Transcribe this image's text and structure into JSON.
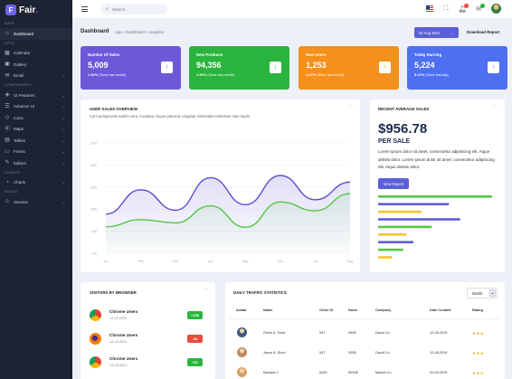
{
  "brand": {
    "name": "Fair",
    "badge": "F",
    "dot": "."
  },
  "sidebar": {
    "sections": [
      {
        "label": "MAIN",
        "items": [
          {
            "label": "Dashboard",
            "icon": "home-icon",
            "active": true
          }
        ]
      },
      {
        "label": "APPS",
        "items": [
          {
            "label": "Calendar",
            "icon": "calendar-icon"
          },
          {
            "label": "Gallery",
            "icon": "image-icon"
          },
          {
            "label": "Email",
            "icon": "mail-icon",
            "chevron": true
          }
        ]
      },
      {
        "label": "COMPONENTS",
        "items": [
          {
            "label": "UI Features",
            "icon": "layers-icon",
            "chevron": true
          },
          {
            "label": "Advance UI",
            "icon": "sliders-icon",
            "chevron": true
          },
          {
            "label": "Icons",
            "icon": "diamond-icon",
            "chevron": true
          },
          {
            "label": "Maps",
            "icon": "map-pin-icon",
            "chevron": true
          },
          {
            "label": "Tables",
            "icon": "table-icon",
            "chevron": true
          },
          {
            "label": "Forms",
            "icon": "form-icon",
            "chevron": true
          },
          {
            "label": "Editors",
            "icon": "edit-icon",
            "chevron": true
          }
        ]
      },
      {
        "label": "CHARTS",
        "items": [
          {
            "label": "Charts",
            "icon": "chart-icon",
            "chevron": true
          }
        ]
      },
      {
        "label": "PAGES",
        "items": [
          {
            "label": "Session",
            "icon": "users-icon",
            "chevron": true
          }
        ]
      }
    ]
  },
  "topbar": {
    "search_placeholder": "Search..."
  },
  "header": {
    "title": "Dashboard",
    "breadcrumb": "App  >  Dashboard  >  Analytics",
    "date": "02 Aug 2021",
    "download": "Download Report"
  },
  "stats": [
    {
      "title": "Number Of Sales",
      "value": "5,009",
      "pct": "1.92%",
      "note": "(Since last month)",
      "color": "#6e58d9",
      "icon": "↑"
    },
    {
      "title": "New Products",
      "value": "94,356",
      "pct": "1.92%",
      "note": "(Since last month)",
      "color": "#2bb43d",
      "icon": "↓"
    },
    {
      "title": "New Users",
      "value": "1,253",
      "pct": "1.27%",
      "note": "(Since last month)",
      "color": "#f4901c",
      "icon": "↑"
    },
    {
      "title": "Today Earning",
      "value": "5,224",
      "pct": "5.12%",
      "note": "(Since last day)",
      "color": "#4d6ff0",
      "icon": "↑"
    }
  ],
  "user_sales": {
    "title": "USER SALES OVERVIEW",
    "subtitle": "Cum perspiciatis autem vero, inceptos, iisque placerat voluptas. Molestias molestiae nam turpis."
  },
  "chart_data": {
    "type": "area",
    "categories": [
      "Jan",
      "Feb",
      "Mar",
      "Apr",
      "May",
      "Jun",
      "Jul",
      "Aug"
    ],
    "yticks": [
      1200,
      1000,
      800,
      600,
      400,
      200
    ],
    "ylim": [
      200,
      1200
    ],
    "series": [
      {
        "name": "",
        "color": "#5a4fcf",
        "values": [
          555,
          775,
          590,
          885,
          640,
          905,
          685,
          845
        ]
      },
      {
        "name": "",
        "color": "#55c546",
        "values": [
          440,
          505,
          475,
          630,
          435,
          665,
          585,
          740
        ]
      }
    ]
  },
  "recent_avg": {
    "title": "RECENT AVERAGE SALES",
    "value": "$956.78",
    "per": "PER SALE",
    "text": "Lorem ipsum dolor sit amet, consectetur adipisicing elit. Atque debitis dolor. Lorem ipsum dolor sit amet, consectetur adipisicing elit. Atque debitis dolor.",
    "button": "View Report",
    "bar_data": [
      {
        "color": "#55c546",
        "value": 1.0
      },
      {
        "color": "#5b5fd8",
        "value": 0.62
      },
      {
        "color": "#f4c430",
        "value": 0.38
      },
      {
        "color": "#5b5fd8",
        "value": 0.72
      },
      {
        "color": "#55c546",
        "value": 0.47
      },
      {
        "color": "#f4c430",
        "value": 0.25
      },
      {
        "color": "#5b5fd8",
        "value": 0.31
      },
      {
        "color": "#55c546",
        "value": 0.22
      },
      {
        "color": "#f4c430",
        "value": 0.12
      }
    ]
  },
  "visitors": {
    "title": "VISITORS BY BROWSER",
    "rows": [
      {
        "name": "Chrome Users",
        "date": "14-03-2021",
        "badge": "+155",
        "badge_color": "#2bb43d",
        "logo": "chrome"
      },
      {
        "name": "Chrome Users",
        "date": "14-03-2021",
        "badge": "-54",
        "badge_color": "#e74c3c",
        "logo": "firefox"
      },
      {
        "name": "Chrome Users",
        "date": "14-03-2021",
        "badge": "+32",
        "badge_color": "#2bb43d",
        "logo": "chrome"
      }
    ]
  },
  "traffic": {
    "title": "DAILY TRAFFIC STATISTICS",
    "filter": "Month",
    "columns": [
      "Avatar",
      "Name",
      "Order ID",
      "Sales",
      "Company",
      "Date Created",
      "Rating"
    ],
    "rows": [
      {
        "name": "Genis A. Short",
        "order": "547",
        "sales": "300$",
        "company": "David Co.",
        "date": "12-08-2019",
        "rating": "★★★",
        "avatar": "#3d5a80"
      },
      {
        "name": "Jason A. Short",
        "order": "547",
        "sales": "300$",
        "company": "David Co.",
        "date": "12-08-2019",
        "rating": "★★★",
        "avatar": "#c08b5c"
      },
      {
        "name": "Barbara J.",
        "order": "6426",
        "sales": "8000$",
        "company": "Market Co.",
        "date": "31-09-2019",
        "rating": "★★★",
        "avatar": "#d9a066"
      }
    ]
  }
}
